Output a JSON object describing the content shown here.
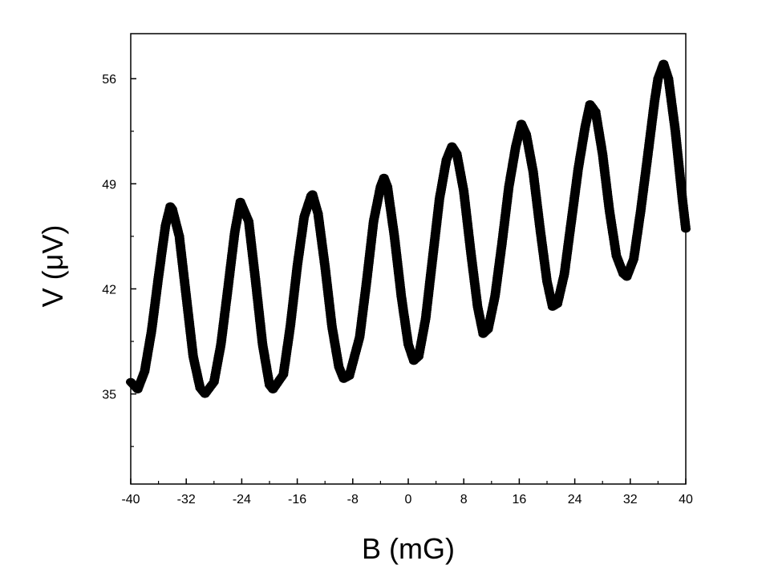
{
  "chart_data": {
    "type": "scatter",
    "title": "",
    "xlabel": "B (mG)",
    "ylabel": "V (μV)",
    "xlim": [
      -40,
      40
    ],
    "ylim": [
      29,
      59
    ],
    "x_ticks": [
      -40,
      -32,
      -24,
      -16,
      -8,
      0,
      8,
      16,
      24,
      32,
      40
    ],
    "x_tick_labels": [
      "-40",
      "-32",
      "-24",
      "-16",
      "-8",
      "0",
      "8",
      "16",
      "24",
      "32",
      "40"
    ],
    "y_ticks": [
      35,
      42,
      49,
      56
    ],
    "y_tick_labels": [
      "35",
      "42",
      "49",
      "56"
    ],
    "grid": false,
    "legend": "none",
    "marker_color": "#000000",
    "series": [
      {
        "x": [
          -40,
          -39,
          -38,
          -37,
          -36,
          -35,
          -34.3,
          -34,
          -33,
          -32,
          -31,
          -30,
          -29.3,
          -28,
          -27,
          -26,
          -25,
          -24.2,
          -23,
          -22,
          -21,
          -20,
          -19.5,
          -18,
          -17,
          -16,
          -15,
          -14,
          -13.8,
          -13,
          -12,
          -11,
          -10,
          -9.3,
          -8.5,
          -7,
          -6,
          -5,
          -4,
          -3.5,
          -3,
          -2,
          -1,
          0,
          0.8,
          1.5,
          2.5,
          3.5,
          4.5,
          5.5,
          6.3,
          7,
          8,
          9,
          10,
          10.8,
          11.5,
          12.5,
          13.5,
          14.5,
          15.5,
          16.3,
          17,
          18,
          19,
          20,
          20.8,
          21.5,
          22.5,
          23.5,
          24.5,
          25.5,
          26.2,
          27,
          28,
          29,
          30,
          31,
          31.5,
          32.5,
          33.5,
          34.5,
          35.5,
          36,
          36.8,
          37.5,
          38.5,
          39.5,
          40
        ],
        "y": [
          35.8,
          35.3,
          36.5,
          39.2,
          42.8,
          46.2,
          47.5,
          47.3,
          45.5,
          41.5,
          37.5,
          35.4,
          35.0,
          35.8,
          38.3,
          42.0,
          45.8,
          47.8,
          46.5,
          42.5,
          38.3,
          35.6,
          35.3,
          36.3,
          39.5,
          43.5,
          46.8,
          48.2,
          48.3,
          47.0,
          43.5,
          39.5,
          36.8,
          36.0,
          36.2,
          38.8,
          42.5,
          46.5,
          48.8,
          49.4,
          48.8,
          45.5,
          41.5,
          38.3,
          37.2,
          37.5,
          40.0,
          44.0,
          48.0,
          50.6,
          51.5,
          51.0,
          48.5,
          44.5,
          40.8,
          39.0,
          39.3,
          41.5,
          45.0,
          48.8,
          51.5,
          53.0,
          52.3,
          49.8,
          46.0,
          42.5,
          40.8,
          41.0,
          43.0,
          46.5,
          50.0,
          52.8,
          54.3,
          53.8,
          51.0,
          47.2,
          44.2,
          43.0,
          42.8,
          44.0,
          47.2,
          50.8,
          54.5,
          56.0,
          57.0,
          56.0,
          52.5,
          48.0,
          46.0
        ]
      }
    ]
  }
}
